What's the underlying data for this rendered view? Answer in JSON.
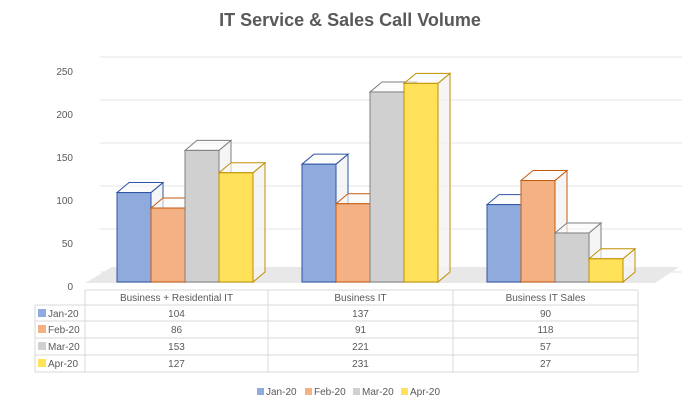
{
  "chart_data": {
    "type": "bar",
    "title": "IT Service & Sales Call Volume",
    "categories": [
      "Business + Residential IT",
      "Business IT",
      "Business IT Sales"
    ],
    "series": [
      {
        "name": "Jan-20",
        "values": [
          104,
          137,
          90
        ],
        "color": "#8faadc",
        "stroke": "#2f55a4"
      },
      {
        "name": "Feb-20",
        "values": [
          86,
          91,
          118
        ],
        "color": "#f4b183",
        "stroke": "#c55a11"
      },
      {
        "name": "Mar-20",
        "values": [
          153,
          221,
          57
        ],
        "color": "#d0d0d0",
        "stroke": "#7f7f7f"
      },
      {
        "name": "Apr-20",
        "values": [
          127,
          231,
          27
        ],
        "color": "#ffe25a",
        "stroke": "#bf9000"
      }
    ],
    "yticks": [
      0,
      50,
      100,
      150,
      200,
      250
    ],
    "ylim": [
      0,
      250
    ],
    "grid": true,
    "data_table": true,
    "legend": "bottom"
  }
}
